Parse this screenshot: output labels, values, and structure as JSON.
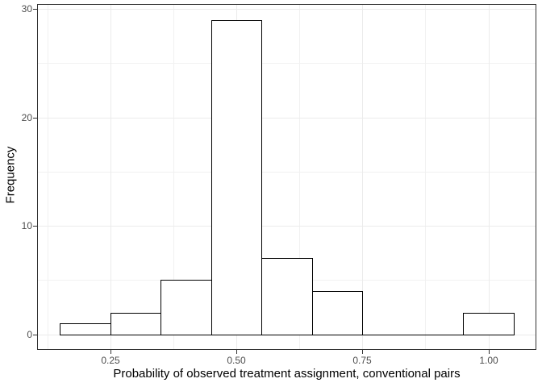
{
  "chart_data": {
    "type": "bar",
    "subtype": "histogram",
    "title": "",
    "xlabel": "Probability of observed treatment assignment, conventional pairs",
    "ylabel": "Frequency",
    "bins": {
      "start": 0.15,
      "width": 0.1,
      "counts": [
        1,
        2,
        5,
        29,
        7,
        4,
        0,
        0,
        2
      ]
    },
    "x_axis": {
      "range": [
        0.105,
        1.095
      ],
      "major_ticks": [
        0.25,
        0.5,
        0.75,
        1.0
      ],
      "major_tick_labels": [
        "0.25",
        "0.50",
        "0.75",
        "1.00"
      ],
      "minor_gridlines": [
        0.125,
        0.375,
        0.625,
        0.875
      ]
    },
    "y_axis": {
      "range": [
        -1.45,
        30.45
      ],
      "major_ticks": [
        0,
        10,
        20,
        30
      ],
      "major_tick_labels": [
        "0",
        "10",
        "20",
        "30"
      ],
      "minor_gridlines": [
        5,
        15,
        25
      ]
    },
    "grid": "major and minor, light gray",
    "legend": false,
    "style": {
      "bar_fill": "#ffffff",
      "bar_stroke": "#000000",
      "panel_background": "#ffffff",
      "panel_border": "#333333",
      "grid_major_color": "#ebebeb",
      "grid_minor_color": "#f1f1f1",
      "tick_color": "#333333",
      "tick_label_color": "#4d4d4d",
      "axis_title_color": "#000000"
    }
  }
}
